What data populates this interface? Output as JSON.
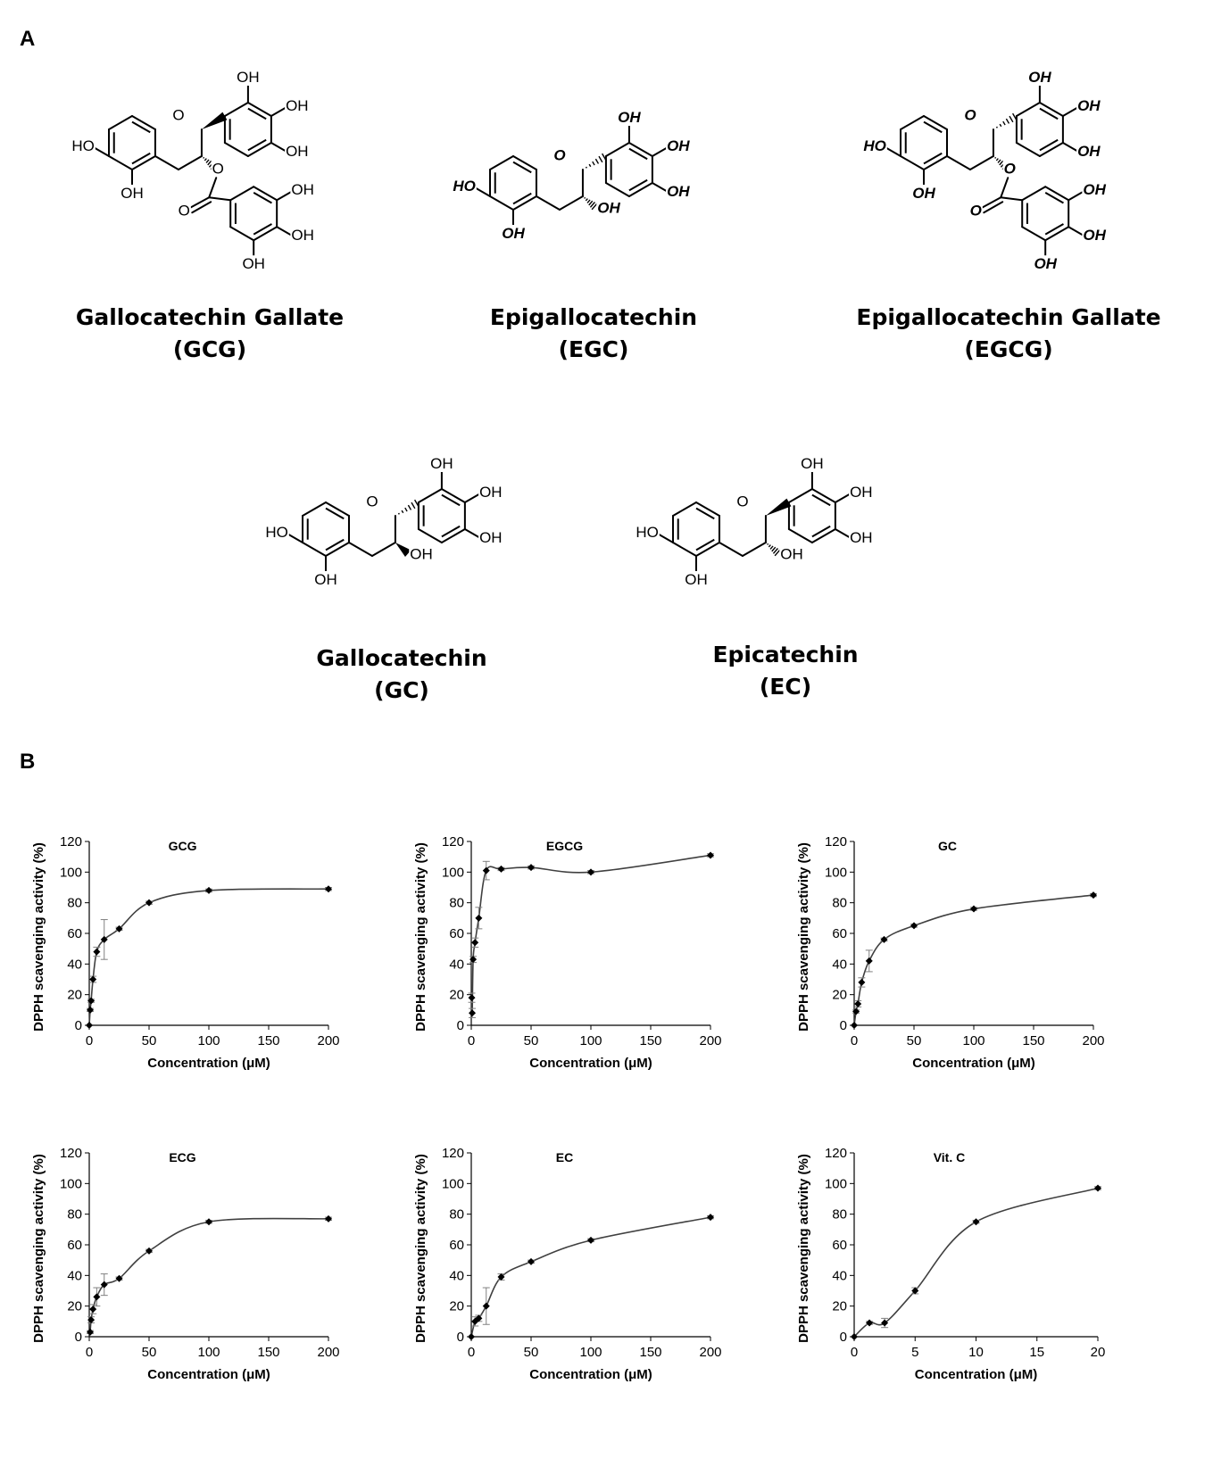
{
  "panels": {
    "a": "A",
    "b": "B"
  },
  "compounds": [
    {
      "name": "Gallocatechin  Gallate",
      "abbr": "(GCG)"
    },
    {
      "name": "Epigallocatechin",
      "abbr": "(EGC)"
    },
    {
      "name": "Epigallocatechin  Gallate",
      "abbr": "(EGCG)"
    },
    {
      "name": "Gallocatechin",
      "abbr": "(GC)"
    },
    {
      "name": "Epicatechin",
      "abbr": "(EC)"
    }
  ],
  "atom_labels": {
    "hydroxyl": "OH",
    "hydroxyl_left": "HO",
    "ring_oxygen": "O"
  },
  "colors": {
    "line": "#404040",
    "marker": "#000000",
    "axis": "#000000",
    "error_bar": "#808080"
  },
  "chart_data": [
    {
      "type": "line",
      "title": "GCG",
      "xlabel": "Concentration (μM)",
      "ylabel": "DPPH scavenging activity (%)",
      "xlim": [
        0,
        200
      ],
      "ylim": [
        0,
        120
      ],
      "xticks": [
        0,
        50,
        100,
        150,
        200
      ],
      "yticks": [
        0,
        20,
        40,
        60,
        80,
        100,
        120
      ],
      "grid": false,
      "marker": "diamond",
      "series": [
        {
          "x": [
            0,
            0.78,
            1.56,
            3.13,
            6.25,
            12.5,
            25,
            50,
            100,
            200
          ],
          "y": [
            0,
            10,
            16,
            30,
            48,
            56,
            63,
            80,
            88,
            89
          ],
          "error": [
            0,
            1,
            1,
            2,
            3,
            13,
            1,
            1,
            1,
            1
          ]
        }
      ]
    },
    {
      "type": "line",
      "title": "EGCG",
      "xlabel": "Concentration (μM)",
      "ylabel": "DPPH scavenging activity (%)",
      "xlim": [
        0,
        200
      ],
      "ylim": [
        0,
        120
      ],
      "xticks": [
        0,
        50,
        100,
        150,
        200
      ],
      "yticks": [
        0,
        20,
        40,
        60,
        80,
        100,
        120
      ],
      "grid": false,
      "marker": "diamond",
      "series": [
        {
          "x": [
            0.39,
            0.78,
            1.56,
            3.13,
            6.25,
            12.5,
            25,
            50,
            100,
            200
          ],
          "y": [
            18,
            8,
            43,
            54,
            70,
            101,
            102,
            103,
            100,
            111
          ],
          "error": [
            3,
            3,
            2,
            3,
            7,
            6,
            1,
            1,
            1,
            1
          ]
        }
      ]
    },
    {
      "type": "line",
      "title": "GC",
      "xlabel": "Concentration (μM)",
      "ylabel": "DPPH scavenging activity (%)",
      "xlim": [
        0,
        200
      ],
      "ylim": [
        0,
        120
      ],
      "xticks": [
        0,
        50,
        100,
        150,
        200
      ],
      "yticks": [
        0,
        20,
        40,
        60,
        80,
        100,
        120
      ],
      "grid": false,
      "marker": "diamond",
      "series": [
        {
          "x": [
            0,
            1.56,
            3.13,
            6.25,
            12.5,
            25,
            50,
            100,
            200
          ],
          "y": [
            0,
            9,
            14,
            28,
            42,
            56,
            65,
            76,
            85
          ],
          "error": [
            0,
            1,
            2,
            3,
            7,
            1,
            1,
            1,
            1
          ]
        }
      ]
    },
    {
      "type": "line",
      "title": "ECG",
      "xlabel": "Concentration (μM)",
      "ylabel": "DPPH scavenging activity (%)",
      "xlim": [
        0,
        200
      ],
      "ylim": [
        0,
        120
      ],
      "xticks": [
        0,
        50,
        100,
        150,
        200
      ],
      "yticks": [
        0,
        20,
        40,
        60,
        80,
        100,
        120
      ],
      "grid": false,
      "marker": "diamond",
      "series": [
        {
          "x": [
            0.78,
            1.56,
            3.13,
            6.25,
            12.5,
            25,
            50,
            100,
            200
          ],
          "y": [
            3,
            11,
            18,
            26,
            34,
            38,
            56,
            75,
            77
          ],
          "error": [
            1,
            2,
            3,
            6,
            7,
            1,
            1,
            1,
            1
          ]
        }
      ]
    },
    {
      "type": "line",
      "title": "EC",
      "xlabel": "Concentration (μM)",
      "ylabel": "DPPH scavenging activity (%)",
      "xlim": [
        0,
        200
      ],
      "ylim": [
        0,
        120
      ],
      "xticks": [
        0,
        50,
        100,
        150,
        200
      ],
      "yticks": [
        0,
        20,
        40,
        60,
        80,
        100,
        120
      ],
      "grid": false,
      "marker": "diamond",
      "series": [
        {
          "x": [
            0,
            3.13,
            6.25,
            12.5,
            25,
            50,
            100,
            200
          ],
          "y": [
            0,
            10,
            12,
            20,
            39,
            49,
            63,
            78
          ],
          "error": [
            0,
            3,
            2,
            12,
            2,
            1,
            1,
            1
          ]
        }
      ]
    },
    {
      "type": "line",
      "title": "Vit. C",
      "xlabel": "Concentration (μM)",
      "ylabel": "DPPH scavenging activity (%)",
      "xlim": [
        0,
        20
      ],
      "ylim": [
        0,
        120
      ],
      "xticks": [
        0,
        5,
        10,
        15,
        20
      ],
      "yticks": [
        0,
        20,
        40,
        60,
        80,
        100,
        120
      ],
      "grid": false,
      "marker": "diamond",
      "series": [
        {
          "x": [
            0,
            1.25,
            2.5,
            5,
            10,
            20
          ],
          "y": [
            0,
            9,
            9,
            30,
            75,
            97
          ],
          "error": [
            0,
            1,
            3,
            2,
            1,
            1
          ]
        }
      ]
    }
  ]
}
